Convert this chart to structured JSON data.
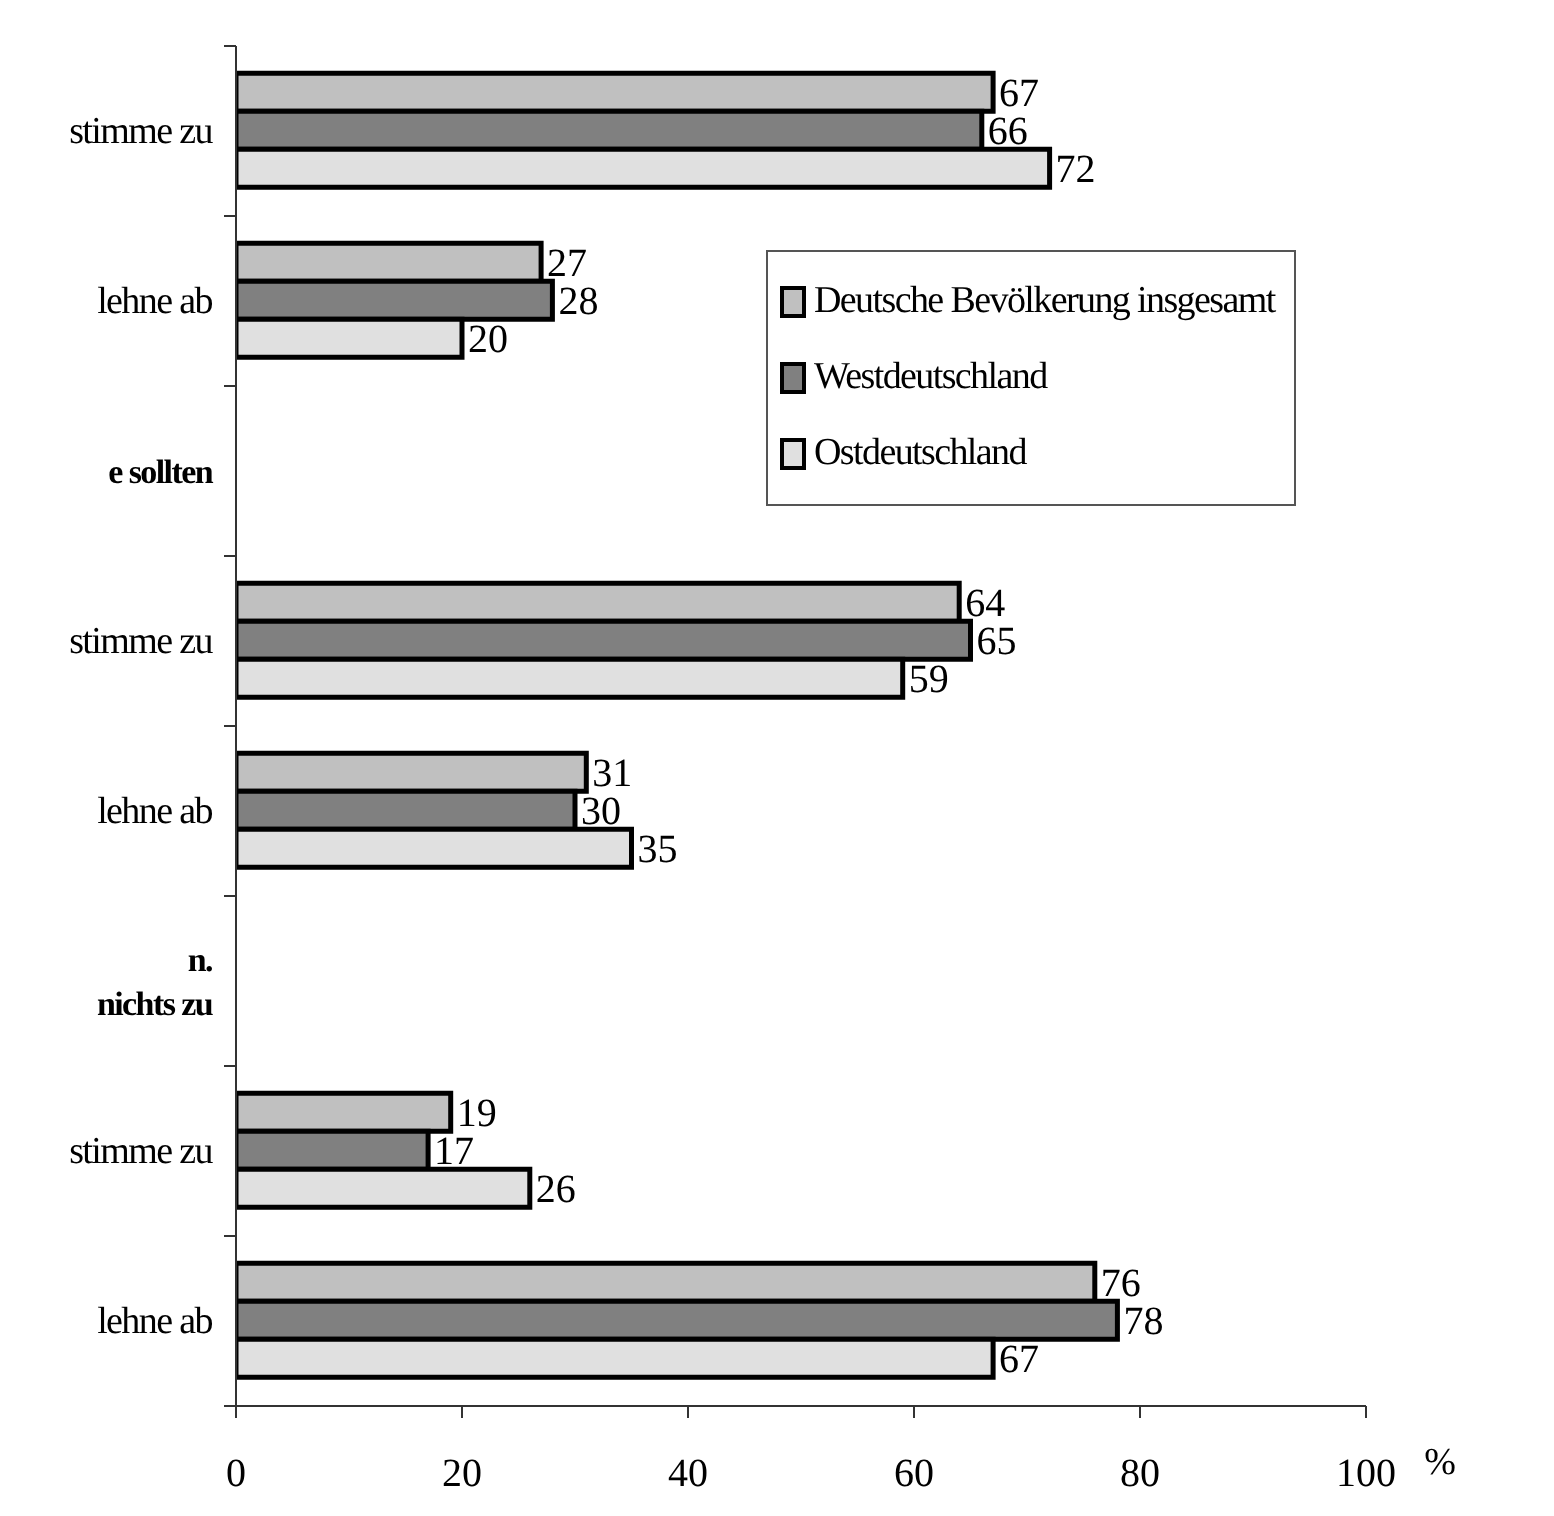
{
  "chart_data": {
    "type": "bar",
    "orientation": "horizontal",
    "categories": [
      "stimme zu",
      "lehne ab",
      "e sollten",
      "stimme zu",
      "lehne ab",
      "n.\nnichts zu",
      "stimme zu",
      "lehne ab"
    ],
    "series": [
      {
        "name": "Deutsche Bevölkerung insgesamt",
        "color": "#c0c0c0",
        "values": [
          67,
          27,
          null,
          64,
          31,
          null,
          19,
          76
        ]
      },
      {
        "name": "Westdeutschland",
        "color": "#808080",
        "values": [
          66,
          28,
          null,
          65,
          30,
          null,
          17,
          78
        ]
      },
      {
        "name": "Ostdeutschland",
        "color": "#e0e0e0",
        "values": [
          72,
          20,
          null,
          59,
          35,
          null,
          26,
          67
        ]
      }
    ],
    "xlim": [
      0,
      100
    ],
    "xticks": [
      0,
      20,
      40,
      60,
      80,
      100
    ],
    "xlabel": "%",
    "data_labels": true,
    "grid": false,
    "legend": "top right"
  }
}
